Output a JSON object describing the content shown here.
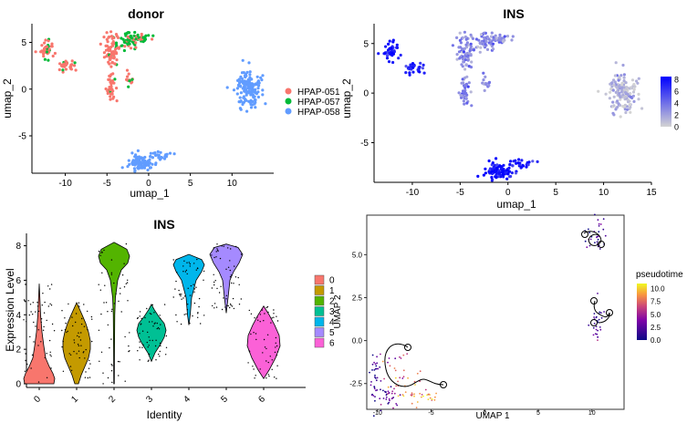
{
  "chart_data": [
    {
      "type": "scatter",
      "title": "donor",
      "xlabel": "umap_1",
      "ylabel": "umap_2",
      "xlim": [
        -14,
        15
      ],
      "ylim": [
        -9,
        7
      ],
      "xticks": [
        "-10",
        "-5",
        "0",
        "5",
        "10"
      ],
      "yticks": [
        "-5",
        "0",
        "5"
      ],
      "legend": {
        "placement": "right",
        "entries": [
          {
            "name": "HPAP-051",
            "color": "#F8766D"
          },
          {
            "name": "HPAP-057",
            "color": "#00BA38"
          },
          {
            "name": "HPAP-058",
            "color": "#619CFF"
          }
        ]
      }
    },
    {
      "type": "scatter",
      "title": "INS",
      "xlabel": "umap_1",
      "ylabel": "umap_2",
      "xlim": [
        -14,
        15
      ],
      "ylim": [
        -9,
        7
      ],
      "xticks": [
        "-10",
        "-5",
        "0",
        "5",
        "10",
        "15"
      ],
      "yticks": [
        "-5",
        "0",
        "5"
      ],
      "colorbar": {
        "ticks": [
          "8",
          "6",
          "4",
          "2",
          "0"
        ],
        "low": "#d3d3d3",
        "high": "#0000ff",
        "range": [
          0,
          8.5
        ]
      }
    },
    {
      "type": "violin",
      "title": "INS",
      "xlabel": "Identity",
      "ylabel": "Expression Level",
      "categories": [
        "0",
        "1",
        "2",
        "3",
        "4",
        "5",
        "6"
      ],
      "yticks": [
        "0",
        "2",
        "4",
        "6",
        "8"
      ],
      "ylim": [
        0,
        8.4
      ],
      "colors": [
        "#F8766D",
        "#C49A00",
        "#53B400",
        "#00C094",
        "#00B6EB",
        "#A58AFF",
        "#FB61D7"
      ],
      "legend": {
        "placement": "right",
        "entries": [
          "0",
          "1",
          "2",
          "3",
          "4",
          "5",
          "6"
        ]
      }
    },
    {
      "type": "scatter",
      "xlabel": "UMAP 1",
      "ylabel": "UMAP 2",
      "xlim": [
        -11,
        13
      ],
      "ylim": [
        -4,
        7.3
      ],
      "xticks": [
        "-10",
        "-5",
        "0",
        "5",
        "10"
      ],
      "yticks": [
        "-2.5",
        "0.0",
        "2.5",
        "5.0"
      ],
      "colorbar": {
        "title": "pseudotime",
        "ticks": [
          "10.0",
          "7.5",
          "5.0",
          "2.5",
          "0.0"
        ],
        "range": [
          0,
          11
        ]
      }
    }
  ]
}
